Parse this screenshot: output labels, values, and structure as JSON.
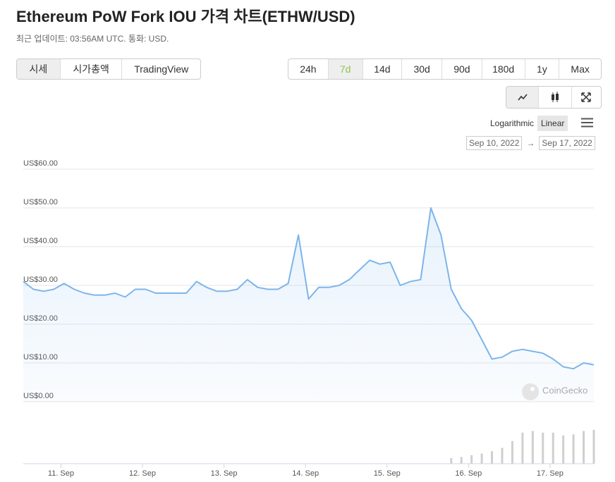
{
  "header": {
    "title": "Ethereum PoW Fork IOU 가격 차트(ETHW/USD)",
    "subtitle": "최근 업데이트: 03:56AM UTC. 통화: USD."
  },
  "tabs": [
    "시세",
    "시가총액",
    "TradingView"
  ],
  "active_tab": 0,
  "ranges": [
    "24h",
    "7d",
    "14d",
    "30d",
    "90d",
    "180d",
    "1y",
    "Max"
  ],
  "active_range": 1,
  "scales": [
    "Logarithmic",
    "Linear"
  ],
  "active_scale": 1,
  "date_from": "Sep 10, 2022",
  "date_arrow": "→",
  "date_to": "Sep 17, 2022",
  "chart_data": {
    "type": "line",
    "watermark": "CoinGecko",
    "series": [
      {
        "color": "#7cb5ec",
        "values": [
          31,
          29,
          28.5,
          29,
          30.5,
          29,
          28,
          27.5,
          27.5,
          28,
          27,
          29,
          29,
          28,
          28,
          28,
          28,
          31,
          29.5,
          28.5,
          28.5,
          29,
          31.5,
          29.5,
          29,
          29,
          30.5,
          43,
          26.5,
          29.5,
          29.5,
          30,
          31.5,
          34,
          36.5,
          35.5,
          36,
          30,
          31,
          31.5,
          50,
          43,
          29,
          24,
          21,
          16,
          11,
          11.5,
          13,
          13.5,
          13,
          12.5,
          11,
          9,
          8.5,
          10,
          9.5
        ]
      }
    ],
    "volumes": [
      0,
      0,
      0,
      0,
      0,
      0,
      0,
      0,
      0,
      0,
      0,
      0,
      0,
      0,
      0,
      0,
      0,
      0,
      0,
      0,
      0,
      0,
      0,
      0,
      0,
      0,
      0,
      0,
      0,
      0,
      0,
      0,
      0,
      0,
      0,
      0,
      0,
      0,
      0,
      0,
      0,
      0,
      10,
      12,
      15,
      18,
      22,
      28,
      40,
      55,
      58,
      55,
      55,
      50,
      52,
      58,
      60
    ],
    "xlim": [
      0,
      56
    ],
    "xticks": [
      {
        "value": 3.7,
        "label": "11. Sep"
      },
      {
        "value": 11.7,
        "label": "12. Sep"
      },
      {
        "value": 19.7,
        "label": "13. Sep"
      },
      {
        "value": 27.7,
        "label": "14. Sep"
      },
      {
        "value": 35.7,
        "label": "15. Sep"
      },
      {
        "value": 43.7,
        "label": "16. Sep"
      },
      {
        "value": 51.7,
        "label": "17. Sep"
      }
    ],
    "ylim": [
      0,
      60
    ],
    "yticks": [
      {
        "value": 0,
        "label": "US$0.00"
      },
      {
        "value": 10,
        "label": "US$10.00"
      },
      {
        "value": 20,
        "label": "US$20.00"
      },
      {
        "value": 30,
        "label": "US$30.00"
      },
      {
        "value": 40,
        "label": "US$40.00"
      },
      {
        "value": 50,
        "label": "US$50.00"
      },
      {
        "value": 60,
        "label": "US$60.00"
      }
    ],
    "grid": true
  }
}
